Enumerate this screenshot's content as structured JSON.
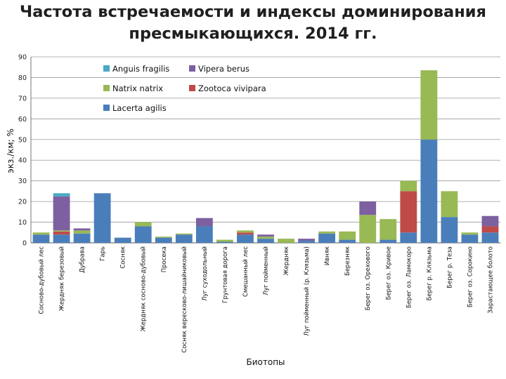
{
  "chart_data": {
    "type": "bar",
    "stacked": true,
    "title_line1": "Частота встречаемости и индексы доминирования",
    "title_line2": "пресмыкающихся. 2014 гг.",
    "xlabel": "Биотопы",
    "ylabel": "экз./км; %",
    "ylim": [
      0,
      90
    ],
    "yticks": [
      0,
      10,
      20,
      30,
      40,
      50,
      60,
      70,
      80,
      90
    ],
    "grid": true,
    "legend_position": "top-left",
    "categories": [
      "Сосново-дубовый лес",
      "Жердняк березовый",
      "Дубрава",
      "Гарь",
      "Сосняк",
      "Жердняк сосново-дубовый",
      "Просека",
      "Сосняк вересково-лишайниковый",
      "Луг суходольный",
      "Грунтовая дорога",
      "Смешанный лес",
      "Луг пойменный",
      "Жердняк",
      "Луг пойменный (р. Клязьма)",
      "Ивняк",
      "Березняк",
      "Берег оз. Орехового",
      "Берег оз. Кривое",
      "Берег оз. Ламокоро",
      "Берег р. Клязьма",
      "Берег р. Теза",
      "Берег оз. Сорокино",
      "Зарастающее болото"
    ],
    "series": [
      {
        "name": "Lacerta agilis",
        "color": "#4a7ebb",
        "values": [
          4,
          4,
          4.5,
          24,
          2.5,
          8,
          2.5,
          4,
          8,
          0.5,
          4,
          2,
          0,
          1,
          4.5,
          1.5,
          0,
          1.5,
          5,
          50,
          12.5,
          4,
          5
        ]
      },
      {
        "name": "Zootoca vivipara",
        "color": "#be4b48",
        "values": [
          0,
          1.5,
          0,
          0,
          0,
          0,
          0,
          0,
          0,
          0,
          1,
          0,
          0,
          0,
          0,
          0,
          0,
          0,
          20,
          0,
          0,
          0,
          3
        ]
      },
      {
        "name": "Natrix natrix",
        "color": "#98b954",
        "values": [
          1,
          0.5,
          1.5,
          0,
          0,
          2,
          0.5,
          0.5,
          0,
          1,
          1,
          1,
          2,
          0,
          1,
          4,
          13.5,
          10,
          5,
          33.5,
          12.5,
          1,
          0
        ]
      },
      {
        "name": "Vipera berus",
        "color": "#7d60a0",
        "values": [
          0,
          16.5,
          1,
          0,
          0,
          0,
          0,
          0,
          4,
          0,
          0,
          1,
          0,
          1,
          0,
          0,
          6.5,
          0,
          0,
          0,
          0,
          0,
          5
        ]
      },
      {
        "name": "Anguis fragilis",
        "color": "#46aac5",
        "values": [
          0,
          1.5,
          0,
          0,
          0,
          0,
          0,
          0,
          0,
          0,
          0,
          0,
          0,
          0,
          0,
          0,
          0,
          0,
          0,
          0,
          0,
          0,
          0
        ]
      }
    ],
    "legend_order": [
      "Anguis fragilis",
      "Vipera berus",
      "Natrix natrix",
      "Zootoca vivipara",
      "Lacerta agilis"
    ]
  }
}
